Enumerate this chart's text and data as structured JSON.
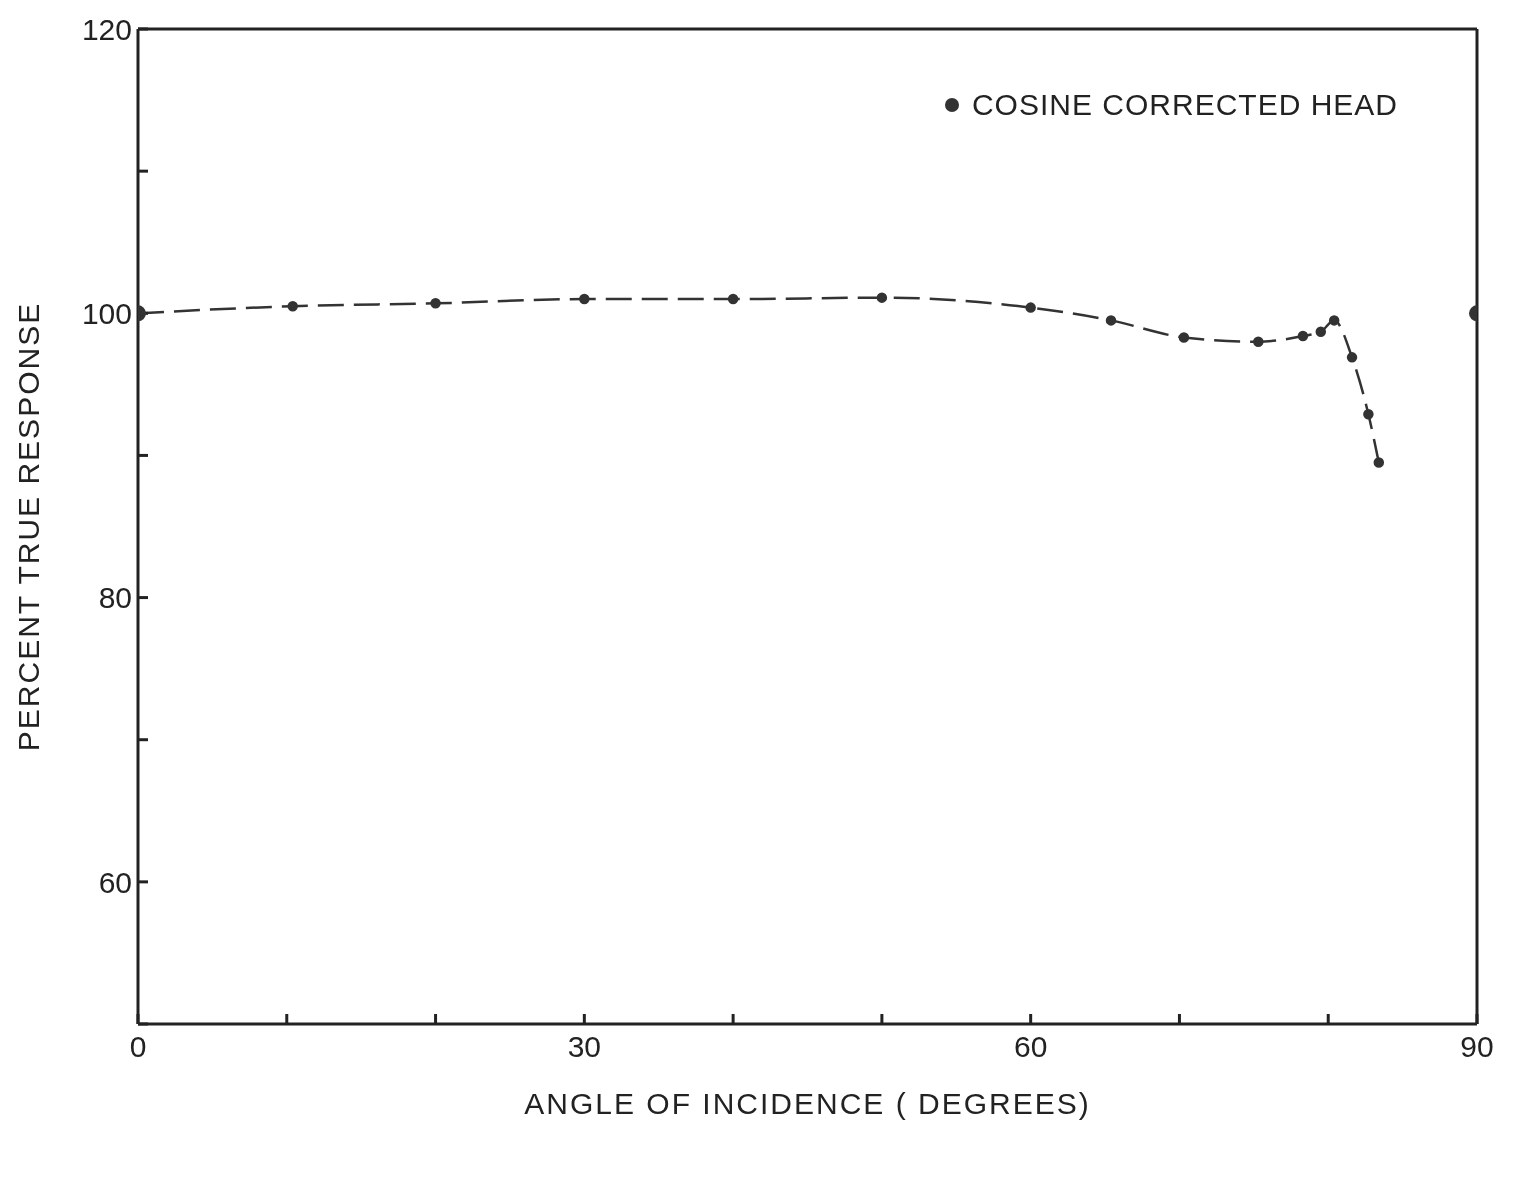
{
  "chart_data": {
    "type": "line",
    "xlabel": "ANGLE OF INCIDENCE  ( DEGREES)",
    "ylabel": "PERCENT TRUE RESPONSE",
    "xlim": [
      0,
      90
    ],
    "ylim": [
      50,
      120
    ],
    "xticks": [
      0,
      {
        "value": 10,
        "label": null
      },
      {
        "value": 20,
        "label": null
      },
      30,
      {
        "value": 40,
        "label": null
      },
      {
        "value": 50,
        "label": null
      },
      60,
      {
        "value": 70,
        "label": null
      },
      {
        "value": 80,
        "label": null
      },
      90
    ],
    "yticks": [
      {
        "value": 50,
        "label": null
      },
      60,
      {
        "value": 70,
        "label": null
      },
      80,
      {
        "value": 90,
        "label": null
      },
      100,
      {
        "value": 110,
        "label": null
      },
      120
    ],
    "legend": "top right",
    "marker": "circle",
    "line_style": "dashed",
    "grid": false,
    "series": [
      {
        "name": "COSINE CORRECTED HEAD",
        "color": "#333333",
        "x": [
          0,
          10.4,
          20,
          30,
          40,
          50,
          60,
          65.4,
          70.3,
          75.3,
          78.3,
          79.5,
          80.4,
          81.6,
          82.7,
          83.4
        ],
        "values": [
          100,
          100.5,
          100.7,
          101,
          101,
          101.1,
          100.4,
          99.5,
          98.3,
          98,
          98.4,
          98.7,
          99.5,
          96.9,
          92.9,
          89.5
        ]
      },
      {
        "type": "scatter",
        "color": "#333333",
        "x": [
          0,
          90
        ],
        "values": [
          100,
          100
        ]
      }
    ]
  }
}
